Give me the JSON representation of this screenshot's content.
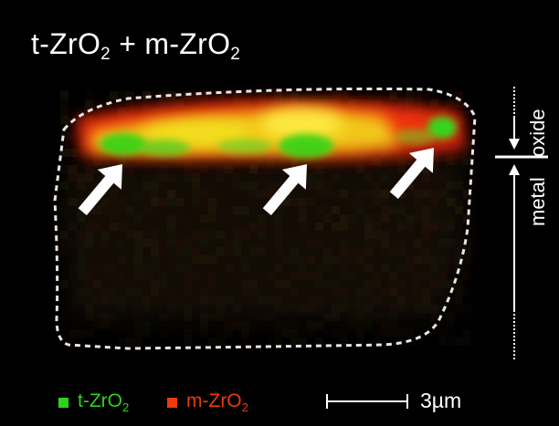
{
  "title": {
    "main": "t-ZrO",
    "sub1": "2",
    "plus": " + m-ZrO",
    "sub2": "2"
  },
  "side_labels": {
    "oxide": "oxide",
    "metal": "metal"
  },
  "legend": {
    "t_phase": {
      "text": "t-ZrO",
      "sub": "2",
      "color": "#2fd11a"
    },
    "m_phase": {
      "text": "m-ZrO",
      "sub": "2",
      "color": "#ee3a0c"
    }
  },
  "scale_bar": {
    "label": "3µm"
  },
  "arrows": {
    "count": 3,
    "color": "#ffffff"
  },
  "colors": {
    "background": "#000000",
    "outline": "#dddddd",
    "t_phase": "#2fd11a",
    "m_phase": "#ee3a0c",
    "overlap": "#e8e418"
  }
}
